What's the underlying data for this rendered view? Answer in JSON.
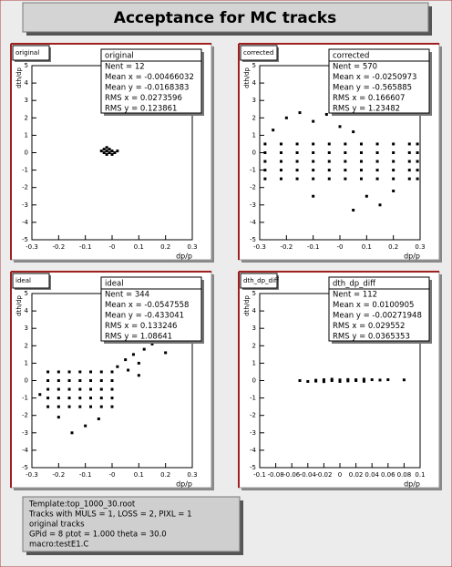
{
  "title": "Acceptance for MC tracks",
  "info_lines": [
    "Template:top_1000_30.root",
    "Tracks with  MULS = 1, LOSS = 2, PIXL = 1",
    "original tracks",
    "GPid =  8   ptot =  1.000  theta =  30.0",
    "macro:testE1.C"
  ],
  "chart_data": [
    {
      "type": "scatter",
      "title": "original",
      "x_label": "dp/p",
      "y_label": "dth/dp",
      "color": "#000000",
      "stats_title": "original",
      "stats": [
        "Nent = 12",
        "Mean x = -0.00466032",
        "Mean y = -0.0168383",
        "RMS x = 0.0273596",
        "RMS y = 0.123861"
      ],
      "xlim": [
        -0.3,
        0.3
      ],
      "xticks": [
        -0.3,
        -0.2,
        -0.1,
        {
          "value": 0,
          "label": "-0"
        },
        0.1,
        0.2,
        0.3
      ],
      "ylim": [
        -5,
        5
      ],
      "yticks": [
        -5,
        -4,
        -3,
        -2,
        -1,
        0,
        1,
        2,
        3,
        4,
        5
      ],
      "x": [
        -0.04,
        -0.03,
        -0.03,
        -0.02,
        -0.02,
        -0.01,
        -0.01,
        0,
        0,
        0.01,
        0.02,
        -0.02
      ],
      "y": [
        0.1,
        0,
        0.2,
        -0.1,
        0.1,
        0,
        0.2,
        -0.1,
        0.1,
        0,
        0.1,
        0.3
      ]
    },
    {
      "type": "scatter",
      "title": "corrected",
      "x_label": "dp/p",
      "y_label": "dth/dp",
      "color": "#000000",
      "stats_title": "corrected",
      "stats": [
        "Nent = 570",
        "Mean x = -0.0250973",
        "Mean y = -0.565885",
        "RMS x = 0.166607",
        "RMS y = 1.23482"
      ],
      "xlim": [
        -0.3,
        0.3
      ],
      "xticks": [
        -0.3,
        -0.2,
        -0.1,
        {
          "value": 0,
          "label": "-0"
        },
        0.1,
        0.2,
        0.3
      ],
      "ylim": [
        -5,
        5
      ],
      "yticks": [
        -5,
        -4,
        -3,
        -2,
        -1,
        0,
        1,
        2,
        3,
        4,
        5
      ],
      "x": [
        -0.28,
        -0.22,
        -0.16,
        -0.1,
        -0.04,
        0.02,
        0.08,
        0.14,
        0.2,
        0.26,
        0.29,
        -0.28,
        -0.22,
        -0.16,
        -0.1,
        -0.04,
        0.02,
        0.08,
        0.14,
        0.2,
        0.26,
        0.29,
        -0.28,
        -0.22,
        -0.16,
        -0.1,
        -0.04,
        0.02,
        0.08,
        0.14,
        0.2,
        0.26,
        0.29,
        -0.28,
        -0.22,
        -0.16,
        -0.1,
        -0.04,
        0.02,
        0.08,
        0.14,
        0.2,
        0.26,
        0.29,
        -0.28,
        -0.22,
        -0.16,
        -0.1,
        -0.04,
        0.02,
        0.08,
        0.14,
        0.2,
        0.26,
        0.29,
        -0.2,
        -0.15,
        -0.1,
        -0.05,
        0,
        0.05,
        -0.25,
        0.1,
        0.15,
        0.2,
        -0.1,
        0.05
      ],
      "y": [
        -1.5,
        -1.5,
        -1.5,
        -1.5,
        -1.5,
        -1.5,
        -1.5,
        -1.5,
        -1.5,
        -1.5,
        -1.5,
        -1,
        -1,
        -1,
        -1,
        -1,
        -1,
        -1,
        -1,
        -1,
        -1,
        -1,
        -0.5,
        -0.5,
        -0.5,
        -0.5,
        -0.5,
        -0.5,
        -0.5,
        -0.5,
        -0.5,
        -0.5,
        -0.5,
        0,
        0,
        0,
        0,
        0,
        0,
        0,
        0,
        0,
        0,
        0,
        0.5,
        0.5,
        0.5,
        0.5,
        0.5,
        0.5,
        0.5,
        0.5,
        0.5,
        0.5,
        0.5,
        2,
        2.3,
        1.8,
        2.2,
        1.5,
        1.2,
        1.3,
        -2.5,
        -3,
        -2.2,
        -2.5,
        -3.3
      ]
    },
    {
      "type": "scatter",
      "title": "ideal",
      "x_label": "dp/p",
      "y_label": "dth/dp",
      "color": "#000000",
      "stats_title": "ideal",
      "stats": [
        "Nent = 344",
        "Mean x = -0.0547558",
        "Mean y = -0.433041",
        "RMS x = 0.133246",
        "RMS y = 1.08641"
      ],
      "xlim": [
        -0.3,
        0.3
      ],
      "xticks": [
        -0.3,
        -0.2,
        -0.1,
        {
          "value": 0,
          "label": "-0"
        },
        0.1,
        0.2,
        0.3
      ],
      "ylim": [
        -5,
        5
      ],
      "yticks": [
        -5,
        -4,
        -3,
        -2,
        -1,
        0,
        1,
        2,
        3,
        4,
        5
      ],
      "x": [
        -0.24,
        -0.2,
        -0.16,
        -0.12,
        -0.08,
        -0.04,
        0,
        -0.24,
        -0.2,
        -0.16,
        -0.12,
        -0.08,
        -0.04,
        0,
        -0.24,
        -0.2,
        -0.16,
        -0.12,
        -0.08,
        -0.04,
        0,
        -0.24,
        -0.2,
        -0.16,
        -0.12,
        -0.08,
        -0.04,
        0,
        -0.24,
        -0.2,
        -0.16,
        -0.12,
        -0.08,
        -0.04,
        0,
        0.02,
        0.05,
        0.08,
        0.1,
        0.12,
        0.15,
        0.18,
        0.2,
        0.06,
        0.1,
        -0.05,
        -0.1,
        -0.2,
        -0.15,
        -0.27,
        0.2
      ],
      "y": [
        -1.5,
        -1.5,
        -1.5,
        -1.5,
        -1.5,
        -1.5,
        -1.5,
        -1,
        -1,
        -1,
        -1,
        -1,
        -1,
        -1,
        -0.5,
        -0.5,
        -0.5,
        -0.5,
        -0.5,
        -0.5,
        -0.5,
        0,
        0,
        0,
        0,
        0,
        0,
        0,
        0.5,
        0.5,
        0.5,
        0.5,
        0.5,
        0.5,
        0.5,
        0.8,
        1.2,
        1.5,
        1,
        1.8,
        2.1,
        2.5,
        1.6,
        0.6,
        0.3,
        -2.2,
        -2.6,
        -2.1,
        -3,
        -0.8,
        3.5
      ]
    },
    {
      "type": "scatter",
      "title": "dth_dp_diff",
      "x_label": "dp/p",
      "y_label": "dth/dp",
      "color": "#000000",
      "stats_title": "dth_dp_diff",
      "stats": [
        "Nent = 112",
        "Mean x = 0.0100905",
        "Mean y = -0.00271948",
        "RMS x = 0.029552",
        "RMS y = 0.0365353"
      ],
      "xlim": [
        -0.1,
        0.1
      ],
      "xticks": [
        -0.1,
        -0.08,
        -0.06,
        -0.04,
        -0.02,
        0,
        0.02,
        0.04,
        0.06,
        0.08,
        0.1
      ],
      "ylim": [
        -5,
        5
      ],
      "yticks": [
        -5,
        -4,
        -3,
        -2,
        -1,
        0,
        1,
        2,
        3,
        4,
        5
      ],
      "x": [
        -0.05,
        -0.04,
        -0.03,
        -0.03,
        -0.02,
        -0.01,
        -0.01,
        0,
        0,
        0.01,
        0.01,
        0.02,
        0.02,
        0.03,
        0.03,
        0.04,
        0.05,
        0.06,
        -0.02,
        0.08
      ],
      "y": [
        0,
        -0.05,
        0.02,
        -0.03,
        0.05,
        0,
        0.08,
        -0.05,
        0.04,
        0.06,
        -0.02,
        0.05,
        0,
        0.08,
        -0.04,
        0.05,
        0.03,
        0.05,
        -0.06,
        0.04
      ]
    }
  ]
}
